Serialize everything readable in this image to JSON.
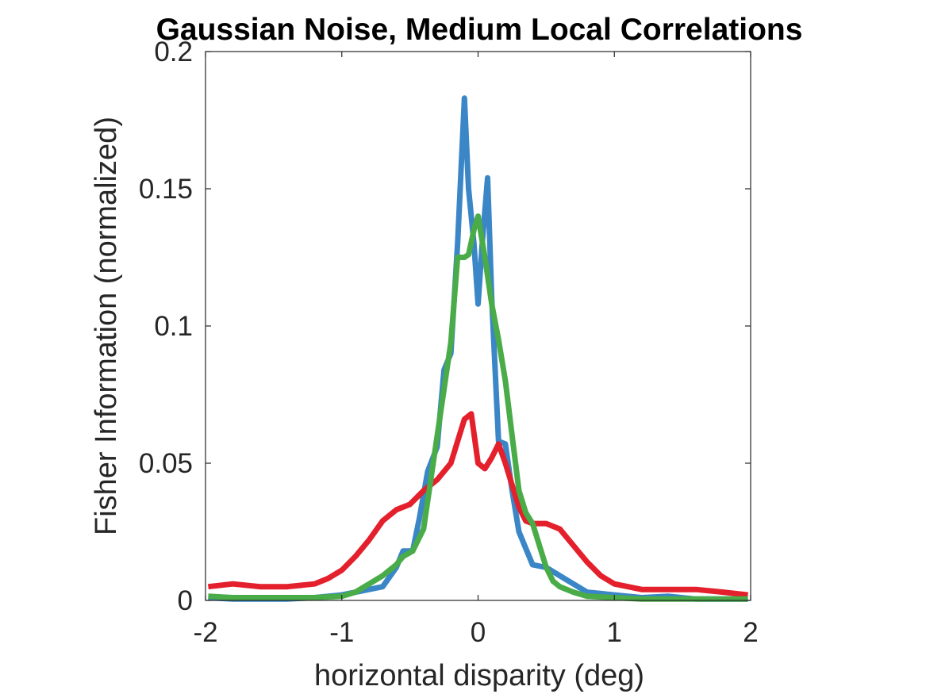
{
  "chart_data": {
    "type": "line",
    "title": "Gaussian Noise, Medium Local Correlations",
    "xlabel": "horizontal disparity (deg)",
    "ylabel": "Fisher Information (normalized)",
    "xlim": [
      -2,
      2
    ],
    "ylim": [
      0,
      0.2
    ],
    "xticks": [
      -2,
      -1,
      0,
      1,
      2
    ],
    "xtick_labels": [
      "-2",
      "-1",
      "0",
      "1",
      "2"
    ],
    "yticks": [
      0,
      0.05,
      0.1,
      0.15,
      0.2
    ],
    "ytick_labels": [
      "0",
      "0.05",
      "0.1",
      "0.15",
      "0.2"
    ],
    "grid": false,
    "legend": "none",
    "series": [
      {
        "color": "#3a86c6",
        "x": [
          -1.98,
          -1.8,
          -1.6,
          -1.4,
          -1.2,
          -1.0,
          -0.8,
          -0.7,
          -0.6,
          -0.55,
          -0.48,
          -0.43,
          -0.37,
          -0.3,
          -0.25,
          -0.2,
          -0.15,
          -0.1,
          -0.07,
          -0.03,
          0.0,
          0.03,
          0.07,
          0.1,
          0.15,
          0.2,
          0.25,
          0.3,
          0.4,
          0.5,
          0.6,
          0.7,
          0.8,
          1.0,
          1.2,
          1.4,
          1.6,
          1.8,
          1.98
        ],
        "y": [
          0.001,
          0.0005,
          0.0005,
          0.0005,
          0.001,
          0.002,
          0.004,
          0.005,
          0.012,
          0.018,
          0.018,
          0.03,
          0.047,
          0.056,
          0.084,
          0.09,
          0.13,
          0.183,
          0.15,
          0.13,
          0.108,
          0.13,
          0.154,
          0.11,
          0.058,
          0.057,
          0.04,
          0.025,
          0.013,
          0.012,
          0.009,
          0.006,
          0.003,
          0.002,
          0.001,
          0.0015,
          0.0005,
          0.0005,
          0.0005
        ]
      },
      {
        "color": "#e3202c",
        "x": [
          -1.98,
          -1.8,
          -1.6,
          -1.4,
          -1.2,
          -1.1,
          -1.0,
          -0.9,
          -0.8,
          -0.7,
          -0.6,
          -0.5,
          -0.4,
          -0.3,
          -0.2,
          -0.15,
          -0.1,
          -0.05,
          0.0,
          0.05,
          0.1,
          0.15,
          0.2,
          0.25,
          0.3,
          0.35,
          0.4,
          0.5,
          0.6,
          0.7,
          0.8,
          0.9,
          1.0,
          1.1,
          1.2,
          1.4,
          1.6,
          1.8,
          1.98
        ],
        "y": [
          0.005,
          0.006,
          0.005,
          0.005,
          0.006,
          0.008,
          0.011,
          0.016,
          0.022,
          0.029,
          0.033,
          0.035,
          0.04,
          0.044,
          0.05,
          0.058,
          0.066,
          0.068,
          0.05,
          0.048,
          0.052,
          0.057,
          0.05,
          0.042,
          0.034,
          0.029,
          0.028,
          0.028,
          0.026,
          0.02,
          0.014,
          0.009,
          0.006,
          0.005,
          0.004,
          0.004,
          0.004,
          0.003,
          0.002
        ]
      },
      {
        "color": "#4aac48",
        "x": [
          -1.98,
          -1.8,
          -1.6,
          -1.4,
          -1.2,
          -1.0,
          -0.9,
          -0.8,
          -0.7,
          -0.6,
          -0.55,
          -0.48,
          -0.4,
          -0.3,
          -0.2,
          -0.15,
          -0.1,
          -0.07,
          -0.03,
          0.0,
          0.05,
          0.1,
          0.15,
          0.2,
          0.25,
          0.3,
          0.35,
          0.4,
          0.5,
          0.55,
          0.6,
          0.7,
          0.8,
          1.0,
          1.2,
          1.4,
          1.6,
          1.8,
          1.98
        ],
        "y": [
          0.0015,
          0.001,
          0.001,
          0.001,
          0.001,
          0.0015,
          0.003,
          0.006,
          0.009,
          0.013,
          0.016,
          0.018,
          0.026,
          0.06,
          0.094,
          0.125,
          0.125,
          0.126,
          0.135,
          0.14,
          0.125,
          0.108,
          0.095,
          0.08,
          0.06,
          0.04,
          0.032,
          0.028,
          0.012,
          0.007,
          0.005,
          0.003,
          0.0015,
          0.001,
          0.0005,
          0.0005,
          0.0005,
          0.0005,
          0.0005
        ]
      }
    ]
  }
}
